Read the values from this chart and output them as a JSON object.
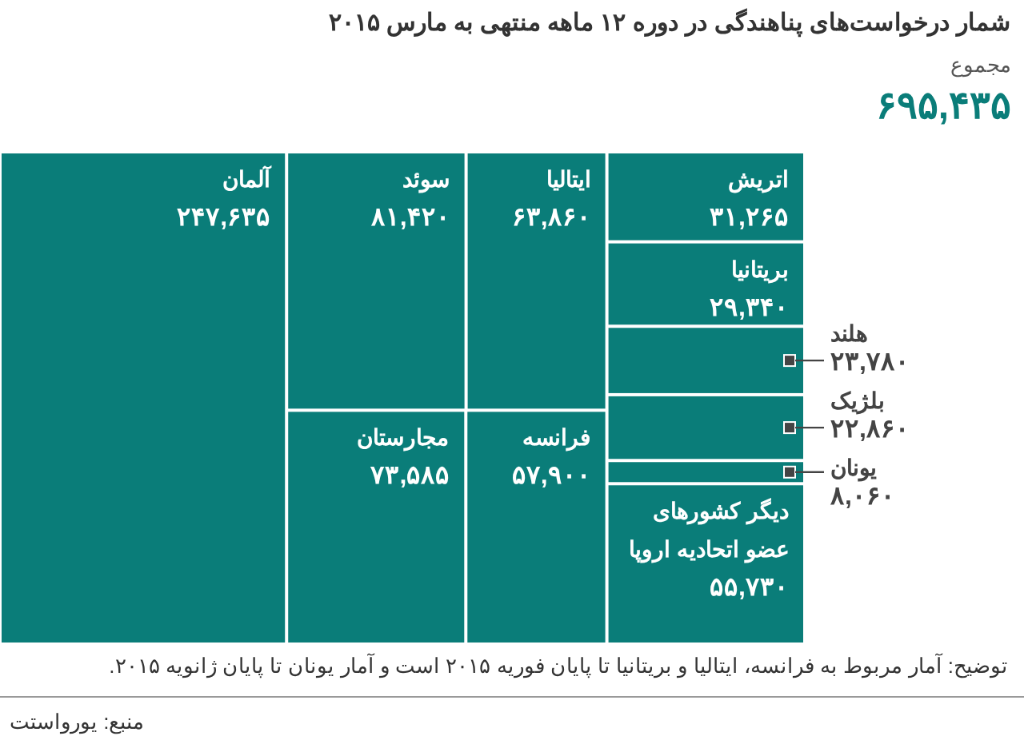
{
  "chart_data": {
    "type": "other",
    "title": "شمار درخواست‌های پناهندگی در دوره ۱۲ ماهه منتهی به مارس ۲۰۱۵",
    "subtitle": "مجموع",
    "totals": [
      "۶۹۵,۴۳۵"
    ],
    "color": "#0a7d79",
    "categories": [
      "آلمان",
      "سوئد",
      "ایتالیا",
      "اتریش",
      "بریتانیا",
      "هلند",
      "بلژیک",
      "یونان",
      "دیگر کشورهای عضو اتحادیه اروپا",
      "مجارستان",
      "فرانسه"
    ],
    "values": [
      247635,
      81420,
      63860,
      31265,
      29340,
      23780,
      22860,
      8060,
      55730,
      73585,
      57900
    ],
    "value_labels": [
      "۲۴۷,۶۳۵",
      "۸۱,۴۲۰",
      "۶۳,۸۶۰",
      "۳۱,۲۶۵",
      "۲۹,۳۴۰",
      "۲۳,۷۸۰",
      "۲۲,۸۶۰",
      "۸,۰۶۰",
      "۵۵,۷۳۰",
      "۷۳,۵۸۵",
      "۵۷,۹۰۰"
    ],
    "annotations": [
      "توضیح: آمار مربوط به فرانسه، ایتالیا و بریتانیا تا پایان فوریه ۲۰۱۵ است و آمار یونان تا پایان ژانویه ۲۰۱۵.",
      "منبع: یورواستت"
    ]
  }
}
